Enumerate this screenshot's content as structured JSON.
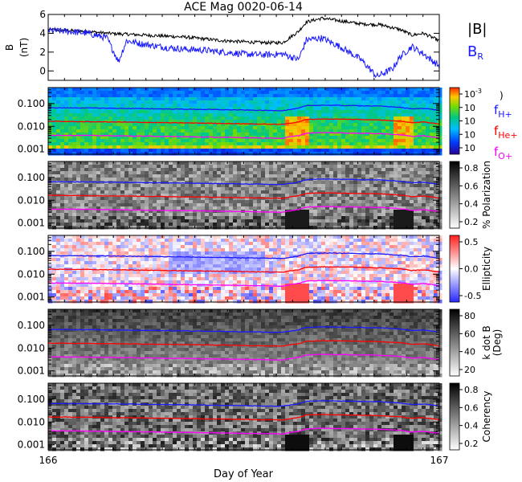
{
  "chart_data": {
    "type": "line",
    "title": "ACE Mag 0020-06-14",
    "xlabel": "Day of Year",
    "x_ticks": [
      "166",
      "167"
    ],
    "xlim": [
      166,
      167
    ],
    "colors": {
      "black": "#000000",
      "blue": "#1a1aff",
      "red": "#ff0000",
      "magenta": "#ff00ff"
    },
    "panels": [
      {
        "id": "field",
        "ylabel": [
          "B",
          "(nT)"
        ],
        "ylim": [
          -1,
          6
        ],
        "y_ticks": [
          "0",
          "2",
          "4",
          "6"
        ],
        "legend": [
          {
            "main": "|B|",
            "sub": "",
            "color": "#000000"
          },
          {
            "main": "B",
            "sub": "R",
            "color": "#1a1aff"
          }
        ],
        "series": [
          {
            "name": "|B|",
            "color": "#000000",
            "x": [
              166.0,
              166.05,
              166.1,
              166.15,
              166.2,
              166.25,
              166.3,
              166.35,
              166.4,
              166.45,
              166.5,
              166.55,
              166.6,
              166.62,
              166.64,
              166.66,
              166.7,
              166.75,
              166.8,
              166.85,
              166.9,
              166.93,
              166.96,
              167.0
            ],
            "y": [
              4.4,
              4.3,
              4.2,
              4.0,
              3.9,
              3.8,
              3.7,
              3.6,
              3.4,
              3.2,
              3.1,
              3.0,
              3.0,
              3.6,
              4.2,
              5.2,
              5.6,
              5.3,
              5.0,
              4.9,
              4.4,
              3.8,
              4.0,
              3.2
            ]
          },
          {
            "name": "B R",
            "color": "#1a1aff",
            "x": [
              166.0,
              166.05,
              166.1,
              166.15,
              166.18,
              166.2,
              166.25,
              166.3,
              166.35,
              166.4,
              166.45,
              166.5,
              166.55,
              166.6,
              166.62,
              166.64,
              166.66,
              166.7,
              166.75,
              166.8,
              166.84,
              166.88,
              166.9,
              166.93,
              166.96,
              167.0
            ],
            "y": [
              4.3,
              4.2,
              4.0,
              3.5,
              1.0,
              3.2,
              2.8,
              2.5,
              2.3,
              2.2,
              2.0,
              1.8,
              1.7,
              1.8,
              1.5,
              1.2,
              3.3,
              3.5,
              2.5,
              1.2,
              -0.6,
              0.2,
              1.5,
              2.6,
              1.8,
              0.5
            ]
          }
        ]
      },
      {
        "id": "psd",
        "colorbar_ticks": [
          "10",
          "10",
          "10",
          "10",
          "10"
        ],
        "colorbar_exps": [
          "-3",
          "",
          "",
          "",
          ""
        ],
        "colorbar_label": ")"
      },
      {
        "id": "polarization",
        "colorbar_ticks": [
          "0.8",
          "0.6",
          "0.4",
          "0.2"
        ],
        "colorbar_label": "% Polarization"
      },
      {
        "id": "ellipticity",
        "colorbar_ticks": [
          "0.5",
          "0.0",
          "-0.5"
        ],
        "colorbar_label": "Ellipticity"
      },
      {
        "id": "kdotb",
        "colorbar_ticks": [
          "80",
          "60",
          "40",
          "20"
        ],
        "colorbar_label": [
          "k dot B",
          "(Deg)"
        ]
      },
      {
        "id": "coherency",
        "colorbar_ticks": [
          "0.8",
          "0.6",
          "0.4",
          "0.2"
        ],
        "colorbar_label": "Coherency"
      }
    ],
    "freq_axis": {
      "scale": "log",
      "ylim": [
        0.0006,
        0.5
      ],
      "y_ticks": [
        "0.100",
        "0.010",
        "0.001"
      ]
    },
    "gyro_lines": [
      {
        "name": "f_H+",
        "main": "f",
        "sub": "H+",
        "color": "#1a1aff",
        "x": [
          166.0,
          166.1,
          166.2,
          166.3,
          166.4,
          166.5,
          166.55,
          166.6,
          166.62,
          166.64,
          166.66,
          166.7,
          166.8,
          166.85,
          166.9,
          166.93,
          166.96,
          167.0
        ],
        "y": [
          0.065,
          0.064,
          0.061,
          0.058,
          0.055,
          0.052,
          0.05,
          0.049,
          0.055,
          0.062,
          0.08,
          0.085,
          0.08,
          0.077,
          0.068,
          0.058,
          0.062,
          0.05
        ]
      },
      {
        "name": "f_He+",
        "main": "f",
        "sub": "He+",
        "color": "#ff0000",
        "x": [
          166.0,
          166.1,
          166.2,
          166.3,
          166.4,
          166.5,
          166.55,
          166.6,
          166.62,
          166.64,
          166.66,
          166.7,
          166.8,
          166.85,
          166.9,
          166.93,
          166.96,
          167.0
        ],
        "y": [
          0.0165,
          0.016,
          0.0153,
          0.0145,
          0.0138,
          0.013,
          0.0125,
          0.0122,
          0.014,
          0.0155,
          0.02,
          0.021,
          0.02,
          0.019,
          0.017,
          0.0145,
          0.0155,
          0.0125
        ]
      },
      {
        "name": "f_O+",
        "main": "f",
        "sub": "O+",
        "color": "#ff00ff",
        "x": [
          166.0,
          166.1,
          166.2,
          166.3,
          166.4,
          166.5,
          166.55,
          166.6,
          166.62,
          166.64,
          166.66,
          166.7,
          166.8,
          166.85,
          166.9,
          166.93,
          166.96,
          167.0
        ],
        "y": [
          0.0041,
          0.004,
          0.0038,
          0.0036,
          0.0034,
          0.0032,
          0.0031,
          0.003,
          0.0035,
          0.0039,
          0.005,
          0.0053,
          0.005,
          0.0048,
          0.0043,
          0.0036,
          0.0039,
          0.0031
        ]
      }
    ]
  }
}
